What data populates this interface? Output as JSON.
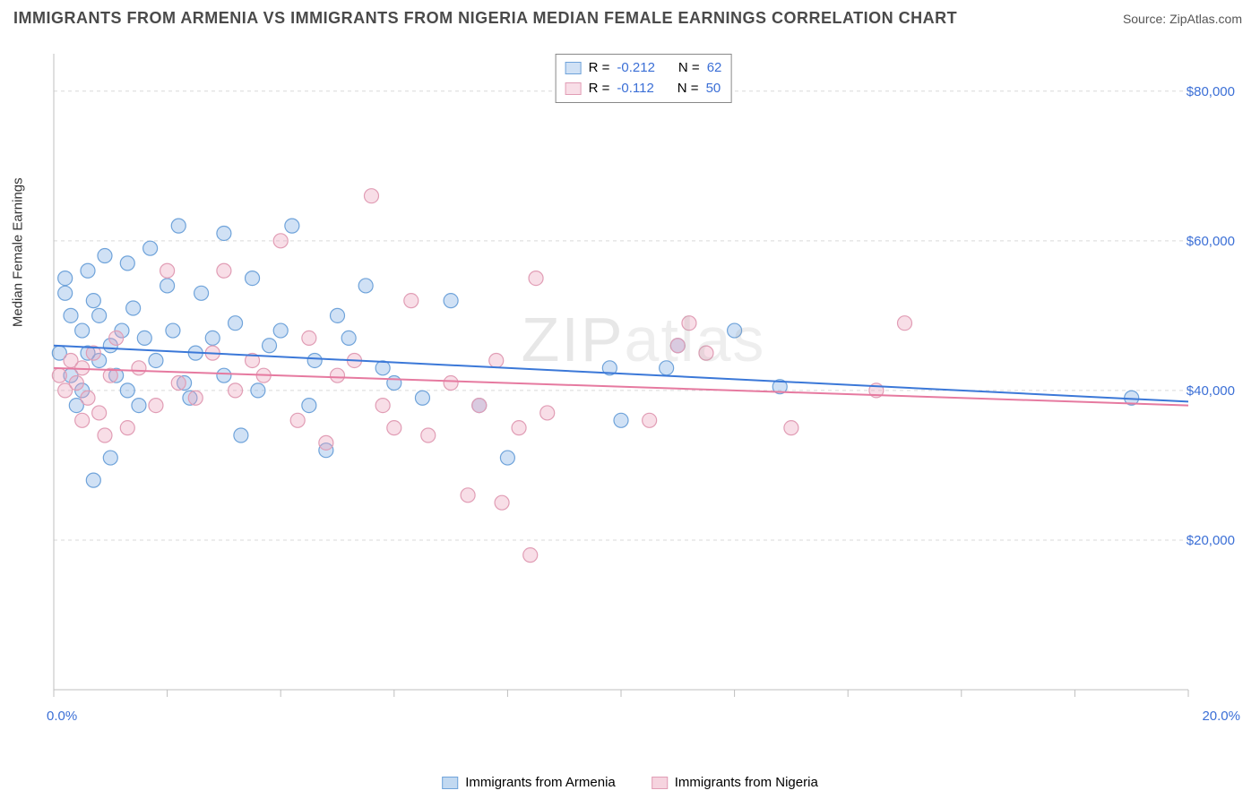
{
  "title": "IMMIGRANTS FROM ARMENIA VS IMMIGRANTS FROM NIGERIA MEDIAN FEMALE EARNINGS CORRELATION CHART",
  "source": "Source: ZipAtlas.com",
  "watermark_a": "ZIP",
  "watermark_b": "atlas",
  "chart": {
    "type": "scatter",
    "y_axis_label": "Median Female Earnings",
    "xlim": [
      0,
      20
    ],
    "ylim": [
      0,
      85000
    ],
    "x_ticks": [
      0,
      2,
      4,
      6,
      8,
      10,
      12,
      14,
      16,
      18,
      20
    ],
    "x_tick_labels_shown": {
      "0": "0.0%",
      "20": "20.0%"
    },
    "y_gridlines": [
      20000,
      40000,
      60000,
      80000
    ],
    "y_tick_labels": {
      "20000": "$20,000",
      "40000": "$40,000",
      "60000": "$60,000",
      "80000": "$80,000"
    },
    "grid_color": "#d9d9d9",
    "axis_color": "#bfbfbf",
    "tick_label_color": "#3b6fd6",
    "background_color": "#ffffff",
    "marker_radius": 8,
    "marker_stroke_width": 1.2,
    "line_width": 2,
    "series": [
      {
        "name": "Immigrants from Armenia",
        "fill": "rgba(120,170,225,0.35)",
        "stroke": "#6fa3da",
        "line_color": "#3b78d8",
        "R_label": "R =",
        "R": "-0.212",
        "N_label": "N =",
        "N": "62",
        "trend": {
          "x1": 0,
          "y1": 46000,
          "x2": 20,
          "y2": 38500
        },
        "points": [
          [
            0.1,
            45000
          ],
          [
            0.2,
            53000
          ],
          [
            0.2,
            55000
          ],
          [
            0.3,
            50000
          ],
          [
            0.3,
            42000
          ],
          [
            0.4,
            38000
          ],
          [
            0.5,
            48000
          ],
          [
            0.5,
            40000
          ],
          [
            0.6,
            56000
          ],
          [
            0.6,
            45000
          ],
          [
            0.7,
            52000
          ],
          [
            0.7,
            28000
          ],
          [
            0.8,
            44000
          ],
          [
            0.8,
            50000
          ],
          [
            0.9,
            58000
          ],
          [
            1.0,
            46000
          ],
          [
            1.0,
            31000
          ],
          [
            1.1,
            42000
          ],
          [
            1.2,
            48000
          ],
          [
            1.3,
            57000
          ],
          [
            1.3,
            40000
          ],
          [
            1.4,
            51000
          ],
          [
            1.5,
            38000
          ],
          [
            1.6,
            47000
          ],
          [
            1.7,
            59000
          ],
          [
            1.8,
            44000
          ],
          [
            2.0,
            54000
          ],
          [
            2.1,
            48000
          ],
          [
            2.2,
            62000
          ],
          [
            2.3,
            41000
          ],
          [
            2.4,
            39000
          ],
          [
            2.5,
            45000
          ],
          [
            2.6,
            53000
          ],
          [
            2.8,
            47000
          ],
          [
            3.0,
            42000
          ],
          [
            3.0,
            61000
          ],
          [
            3.2,
            49000
          ],
          [
            3.3,
            34000
          ],
          [
            3.5,
            55000
          ],
          [
            3.6,
            40000
          ],
          [
            3.8,
            46000
          ],
          [
            4.0,
            48000
          ],
          [
            4.2,
            62000
          ],
          [
            4.5,
            38000
          ],
          [
            4.6,
            44000
          ],
          [
            4.8,
            32000
          ],
          [
            5.0,
            50000
          ],
          [
            5.2,
            47000
          ],
          [
            5.5,
            54000
          ],
          [
            5.8,
            43000
          ],
          [
            6.0,
            41000
          ],
          [
            6.5,
            39000
          ],
          [
            7.0,
            52000
          ],
          [
            7.5,
            38000
          ],
          [
            8.0,
            31000
          ],
          [
            9.8,
            43000
          ],
          [
            10.0,
            36000
          ],
          [
            10.8,
            43000
          ],
          [
            11.0,
            46000
          ],
          [
            12.0,
            48000
          ],
          [
            12.8,
            40500
          ],
          [
            19.0,
            39000
          ]
        ]
      },
      {
        "name": "Immigrants from Nigeria",
        "fill": "rgba(235,160,185,0.35)",
        "stroke": "#e19db5",
        "line_color": "#e67aa0",
        "R_label": "R =",
        "R": "-0.112",
        "N_label": "N =",
        "N": "50",
        "trend": {
          "x1": 0,
          "y1": 43000,
          "x2": 20,
          "y2": 38000
        },
        "points": [
          [
            0.1,
            42000
          ],
          [
            0.2,
            40000
          ],
          [
            0.3,
            44000
          ],
          [
            0.4,
            41000
          ],
          [
            0.5,
            36000
          ],
          [
            0.5,
            43000
          ],
          [
            0.6,
            39000
          ],
          [
            0.7,
            45000
          ],
          [
            0.8,
            37000
          ],
          [
            0.9,
            34000
          ],
          [
            1.0,
            42000
          ],
          [
            1.1,
            47000
          ],
          [
            1.3,
            35000
          ],
          [
            1.5,
            43000
          ],
          [
            1.8,
            38000
          ],
          [
            2.0,
            56000
          ],
          [
            2.2,
            41000
          ],
          [
            2.5,
            39000
          ],
          [
            2.8,
            45000
          ],
          [
            3.0,
            56000
          ],
          [
            3.2,
            40000
          ],
          [
            3.5,
            44000
          ],
          [
            3.7,
            42000
          ],
          [
            4.0,
            60000
          ],
          [
            4.3,
            36000
          ],
          [
            4.5,
            47000
          ],
          [
            4.8,
            33000
          ],
          [
            5.0,
            42000
          ],
          [
            5.3,
            44000
          ],
          [
            5.6,
            66000
          ],
          [
            5.8,
            38000
          ],
          [
            6.0,
            35000
          ],
          [
            6.3,
            52000
          ],
          [
            6.6,
            34000
          ],
          [
            7.0,
            41000
          ],
          [
            7.3,
            26000
          ],
          [
            7.5,
            38000
          ],
          [
            7.8,
            44000
          ],
          [
            7.9,
            25000
          ],
          [
            8.2,
            35000
          ],
          [
            8.5,
            55000
          ],
          [
            8.7,
            37000
          ],
          [
            8.4,
            18000
          ],
          [
            10.5,
            36000
          ],
          [
            11.0,
            46000
          ],
          [
            11.2,
            49000
          ],
          [
            11.5,
            45000
          ],
          [
            13.0,
            35000
          ],
          [
            15.0,
            49000
          ],
          [
            14.5,
            40000
          ]
        ]
      }
    ]
  },
  "legend_bottom": [
    {
      "label": "Immigrants from Armenia",
      "fill": "rgba(120,170,225,0.45)",
      "stroke": "#6fa3da"
    },
    {
      "label": "Immigrants from Nigeria",
      "fill": "rgba(235,160,185,0.45)",
      "stroke": "#e19db5"
    }
  ]
}
